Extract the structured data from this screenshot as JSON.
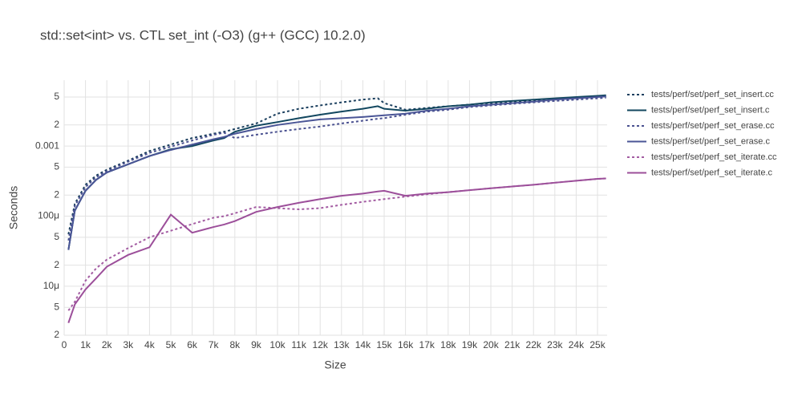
{
  "chart_data": {
    "type": "line",
    "title": "std::set<int> vs. CTL set_int (-O3) (g++ (GCC) 10.2.0)",
    "x_label": "Size",
    "y_label": "Seconds",
    "ylog": true,
    "grid": true,
    "legend": "right",
    "x": [
      200,
      500,
      1000,
      1500,
      2000,
      3000,
      4000,
      5000,
      6000,
      7000,
      7500,
      8000,
      9000,
      10000,
      11000,
      12000,
      13000,
      14000,
      14700,
      15000,
      16000,
      17000,
      18000,
      19000,
      20000,
      21000,
      22000,
      23000,
      24000,
      25000,
      25400
    ],
    "series": [
      {
        "name": "tests/perf/set/perf_set_insert.cc",
        "color": "#1b3f5e",
        "dash": "dot",
        "values": [
          5.5e-05,
          0.00015,
          0.00028,
          0.00038,
          0.00046,
          0.00062,
          0.00085,
          0.00105,
          0.0013,
          0.0015,
          0.0016,
          0.00175,
          0.0021,
          0.0029,
          0.0034,
          0.0038,
          0.0042,
          0.0046,
          0.0048,
          0.0041,
          0.0033,
          0.0035,
          0.0037,
          0.0039,
          0.0041,
          0.0043,
          0.0045,
          0.0047,
          0.0049,
          0.0051,
          0.0052
        ]
      },
      {
        "name": "tests/perf/set/perf_set_insert.c",
        "color": "#12475f",
        "dash": "solid",
        "values": [
          3.3e-05,
          0.00012,
          0.00023,
          0.00033,
          0.00042,
          0.00055,
          0.00072,
          0.0009,
          0.001,
          0.0012,
          0.0013,
          0.0016,
          0.00195,
          0.0022,
          0.0025,
          0.0028,
          0.0031,
          0.0034,
          0.0037,
          0.0034,
          0.0032,
          0.0034,
          0.0037,
          0.0039,
          0.0042,
          0.0044,
          0.0046,
          0.0048,
          0.005,
          0.0052,
          0.0053
        ]
      },
      {
        "name": "tests/perf/set/perf_set_erase.cc",
        "color": "#4a5190",
        "dash": "dot",
        "values": [
          4.5e-05,
          0.00014,
          0.00026,
          0.00036,
          0.00044,
          0.0006,
          0.0008,
          0.00098,
          0.0012,
          0.00145,
          0.00155,
          0.0013,
          0.00145,
          0.0016,
          0.00175,
          0.0019,
          0.0021,
          0.0023,
          0.00245,
          0.0025,
          0.0028,
          0.0031,
          0.0033,
          0.0036,
          0.0038,
          0.004,
          0.0042,
          0.0044,
          0.0046,
          0.0048,
          0.0049
        ]
      },
      {
        "name": "tests/perf/set/perf_set_erase.c",
        "color": "#4a5596",
        "dash": "solid",
        "values": [
          3.3e-05,
          0.00012,
          0.00023,
          0.00033,
          0.00042,
          0.00055,
          0.00072,
          0.00088,
          0.00105,
          0.00125,
          0.00135,
          0.0015,
          0.00175,
          0.002,
          0.0022,
          0.0024,
          0.0025,
          0.0026,
          0.0027,
          0.00275,
          0.0029,
          0.0032,
          0.0034,
          0.0037,
          0.0039,
          0.0041,
          0.0043,
          0.0046,
          0.0048,
          0.005,
          0.0051
        ]
      },
      {
        "name": "tests/perf/set/perf_set_iterate.cc",
        "color": "#a35ca2",
        "dash": "dot",
        "values": [
          4.5e-06,
          6e-06,
          1.2e-05,
          1.8e-05,
          2.4e-05,
          3.5e-05,
          5e-05,
          6.2e-05,
          7.7e-05,
          9.5e-05,
          0.0001,
          0.00011,
          0.000135,
          0.00013,
          0.000125,
          0.00013,
          0.000145,
          0.00016,
          0.00017,
          0.000175,
          0.00019,
          0.000205,
          0.00022,
          0.000235,
          0.00025,
          0.000265,
          0.00028,
          0.0003,
          0.00032,
          0.00034,
          0.000345
        ]
      },
      {
        "name": "tests/perf/set/perf_set_iterate.c",
        "color": "#9c4f9a",
        "dash": "solid",
        "values": [
          3e-06,
          5.5e-06,
          9e-06,
          1.3e-05,
          1.9e-05,
          2.8e-05,
          3.6e-05,
          0.000105,
          5.8e-05,
          7e-05,
          7.6e-05,
          8.5e-05,
          0.000115,
          0.000135,
          0.000155,
          0.000175,
          0.000195,
          0.00021,
          0.000225,
          0.00023,
          0.000195,
          0.00021,
          0.00022,
          0.000235,
          0.00025,
          0.000265,
          0.00028,
          0.0003,
          0.00032,
          0.00034,
          0.000345
        ]
      }
    ],
    "xlim": [
      0,
      25450
    ],
    "xticks": [
      0,
      {
        "value": 1000,
        "label": "1k"
      },
      {
        "value": 2000,
        "label": "2k"
      },
      {
        "value": 3000,
        "label": "3k"
      },
      {
        "value": 4000,
        "label": "4k"
      },
      {
        "value": 5000,
        "label": "5k"
      },
      {
        "value": 6000,
        "label": "6k"
      },
      {
        "value": 7000,
        "label": "7k"
      },
      {
        "value": 8000,
        "label": "8k"
      },
      {
        "value": 9000,
        "label": "9k"
      },
      {
        "value": 10000,
        "label": "10k"
      },
      {
        "value": 11000,
        "label": "11k"
      },
      {
        "value": 12000,
        "label": "12k"
      },
      {
        "value": 13000,
        "label": "13k"
      },
      {
        "value": 14000,
        "label": "14k"
      },
      {
        "value": 15000,
        "label": "15k"
      },
      {
        "value": 16000,
        "label": "16k"
      },
      {
        "value": 17000,
        "label": "17k"
      },
      {
        "value": 18000,
        "label": "18k"
      },
      {
        "value": 19000,
        "label": "19k"
      },
      {
        "value": 20000,
        "label": "20k"
      },
      {
        "value": 21000,
        "label": "21k"
      },
      {
        "value": 22000,
        "label": "22k"
      },
      {
        "value": 23000,
        "label": "23k"
      },
      {
        "value": 24000,
        "label": "24k"
      },
      {
        "value": 25000,
        "label": "25k"
      }
    ],
    "ylim": [
      2e-06,
      0.0087
    ],
    "yticks": [
      {
        "value": 2e-06,
        "label": "2"
      },
      {
        "value": 5e-06,
        "label": "5"
      },
      {
        "value": 1e-05,
        "label": "10μ"
      },
      {
        "value": 2e-05,
        "label": "2"
      },
      {
        "value": 5e-05,
        "label": "5"
      },
      {
        "value": 0.0001,
        "label": "100μ"
      },
      {
        "value": 0.0002,
        "label": "2"
      },
      {
        "value": 0.0005,
        "label": "5"
      },
      0.001,
      {
        "value": 0.002,
        "label": "2"
      },
      {
        "value": 0.005,
        "label": "5"
      }
    ]
  }
}
